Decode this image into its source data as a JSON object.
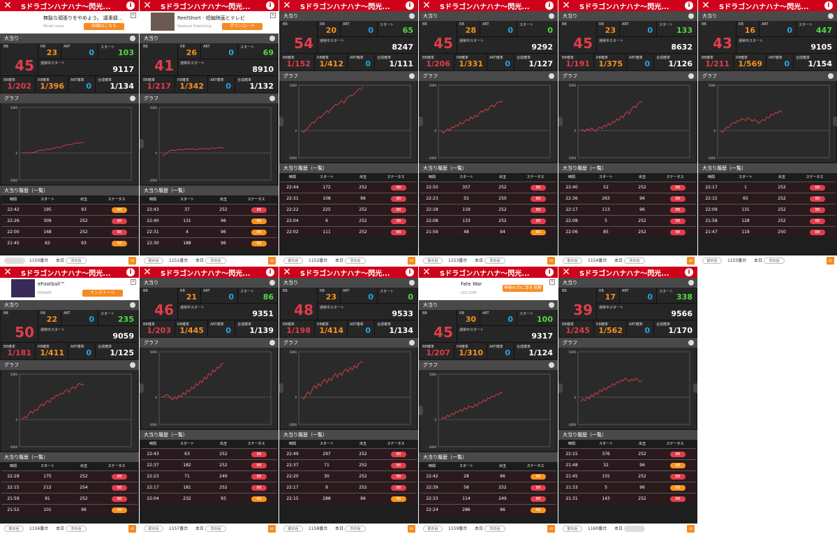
{
  "title": "Sドラゴンハナハナ〜閃光...",
  "labels": {
    "section_bonus": "大当り",
    "section_graph": "グラフ",
    "section_history": "大当り履歴（一覧）",
    "bb": "BB",
    "rb": "RB",
    "art": "ART",
    "start": "スタート",
    "normal_start": "通常中スタート",
    "bb_prob": "BB確率",
    "rb_prob": "RB確率",
    "art_prob": "ART確率",
    "total_prob": "合成確率",
    "col_time": "時間",
    "col_start": "スタート",
    "col_payout": "出玉",
    "col_status": "ステータス",
    "prev": "前の台",
    "next": "次の台",
    "today": "本日",
    "y_top": "5000",
    "y_mid": "0",
    "y_bottom": "-3000",
    "close_glyph": "✕",
    "info_glyph": "i",
    "status_bb": "BB",
    "status_rb": "RB"
  },
  "ads": {
    "p0": {
      "text": "無駄な頑張りをやめよう。 議事録…",
      "sub": "MindCruiser",
      "btn": "詳細はこちら"
    },
    "p1": {
      "text": "ReelShort - 短編映画とテレビ",
      "sub": "NewLeaf Publishing",
      "btn": "ダウンロード"
    },
    "p6": {
      "text": "eFootball™",
      "sub": "KONAMI",
      "btn": "インストール"
    },
    "p9": {
      "text": "Fate War",
      "sub": "IGG.COM",
      "btn": "神秘の力に目を覚醒"
    }
  },
  "panels": [
    {
      "bb": "45",
      "rb": "23",
      "art": "0",
      "start": "103",
      "normal_start": "9117",
      "bb_prob": "1/202",
      "rb_prob": "1/396",
      "art_prob": "0",
      "total_prob": "1/134",
      "machine": "1150番台",
      "graph": [
        0,
        0,
        0,
        -20,
        0,
        40,
        100,
        170,
        260,
        330,
        280,
        360,
        420,
        380,
        460,
        520,
        600,
        640,
        580,
        700,
        820,
        880,
        950,
        900,
        1000,
        1080,
        1120,
        1050,
        1150,
        1100
      ],
      "history": [
        {
          "t": "22:42",
          "s": "195",
          "p": "93",
          "st": "RB"
        },
        {
          "t": "22:26",
          "s": "309",
          "p": "252",
          "st": "BB"
        },
        {
          "t": "22:00",
          "s": "168",
          "p": "252",
          "st": "BB"
        },
        {
          "t": "21:45",
          "s": "62",
          "p": "93",
          "st": "RB"
        }
      ]
    },
    {
      "bb": "41",
      "rb": "26",
      "art": "0",
      "start": "69",
      "normal_start": "8910",
      "bb_prob": "1/217",
      "rb_prob": "1/342",
      "art_prob": "0",
      "total_prob": "1/132",
      "machine": "1151番台",
      "graph": [
        -300,
        -200,
        -100,
        100,
        280,
        320,
        250,
        330,
        400,
        380,
        300,
        420,
        450,
        380,
        480,
        420,
        360,
        400,
        470,
        430,
        510,
        460,
        420,
        500,
        560,
        480,
        520,
        600,
        550,
        580
      ],
      "history": [
        {
          "t": "22:43",
          "s": "37",
          "p": "252",
          "st": "BB"
        },
        {
          "t": "22:40",
          "s": "131",
          "p": "96",
          "st": "RB"
        },
        {
          "t": "22:31",
          "s": "4",
          "p": "96",
          "st": "RB"
        },
        {
          "t": "22:30",
          "s": "188",
          "p": "96",
          "st": "RB"
        }
      ]
    },
    {
      "bb": "54",
      "rb": "20",
      "art": "0",
      "start": "65",
      "normal_start": "8247",
      "bb_prob": "1/152",
      "rb_prob": "1/412",
      "art_prob": "0",
      "total_prob": "1/111",
      "machine": "1152番台",
      "graph": [
        0,
        -200,
        100,
        300,
        600,
        900,
        800,
        1200,
        1500,
        1400,
        1700,
        1900,
        2200,
        2000,
        2400,
        2600,
        2900,
        2800,
        3100,
        3300,
        3000,
        3500,
        3700,
        3900,
        3800,
        4100,
        4300,
        4600,
        4500,
        4800
      ],
      "history": [
        {
          "t": "22:44",
          "s": "172",
          "p": "252",
          "st": "BB"
        },
        {
          "t": "22:31",
          "s": "108",
          "p": "96",
          "st": "BB"
        },
        {
          "t": "22:22",
          "s": "225",
          "p": "252",
          "st": "BB"
        },
        {
          "t": "22:04",
          "s": "6",
          "p": "252",
          "st": "BB"
        },
        {
          "t": "22:02",
          "s": "111",
          "p": "252",
          "st": "BB"
        }
      ]
    },
    {
      "bb": "45",
      "rb": "28",
      "art": "0",
      "start": "0",
      "normal_start": "9292",
      "bb_prob": "1/206",
      "rb_prob": "1/331",
      "art_prob": "0",
      "total_prob": "1/127",
      "machine": "1153番台",
      "graph": [
        0,
        -300,
        -100,
        200,
        0,
        400,
        300,
        600,
        500,
        900,
        700,
        1000,
        1200,
        1100,
        1500,
        1300,
        1700,
        1500,
        1900,
        2200,
        2000,
        2400,
        2200,
        2600,
        2800,
        2600,
        3000,
        3200,
        3100,
        3300
      ],
      "history": [
        {
          "t": "22:50",
          "s": "357",
          "p": "252",
          "st": "BB"
        },
        {
          "t": "22:23",
          "s": "55",
          "p": "250",
          "st": "BB"
        },
        {
          "t": "22:18",
          "s": "119",
          "p": "252",
          "st": "BB"
        },
        {
          "t": "22:08",
          "s": "133",
          "p": "252",
          "st": "BB"
        },
        {
          "t": "21:59",
          "s": "48",
          "p": "94",
          "st": "RB"
        }
      ]
    },
    {
      "bb": "45",
      "rb": "23",
      "art": "0",
      "start": "133",
      "normal_start": "8632",
      "bb_prob": "1/191",
      "rb_prob": "1/375",
      "art_prob": "0",
      "total_prob": "1/126",
      "machine": "1154番台",
      "graph": [
        0,
        100,
        -100,
        200,
        0,
        300,
        100,
        -100,
        200,
        400,
        200,
        600,
        400,
        800,
        600,
        1000,
        900,
        1300,
        1100,
        1600,
        1400,
        1900,
        2100,
        1800,
        2400,
        2700,
        2500,
        3000,
        3200,
        3100
      ],
      "history": [
        {
          "t": "22:40",
          "s": "52",
          "p": "252",
          "st": "BB"
        },
        {
          "t": "22:36",
          "s": "263",
          "p": "96",
          "st": "BB"
        },
        {
          "t": "22:17",
          "s": "113",
          "p": "96",
          "st": "BB"
        },
        {
          "t": "22:08",
          "s": "5",
          "p": "252",
          "st": "BB"
        },
        {
          "t": "22:06",
          "s": "85",
          "p": "252",
          "st": "BB"
        }
      ]
    },
    {
      "bb": "43",
      "rb": "16",
      "art": "0",
      "start": "447",
      "normal_start": "9105",
      "bb_prob": "1/211",
      "rb_prob": "1/569",
      "art_prob": "0",
      "total_prob": "1/154",
      "machine": "1155番台",
      "graph": [
        0,
        -200,
        100,
        400,
        300,
        700,
        900,
        800,
        1100,
        1000,
        1300,
        1200,
        1100,
        1400,
        1300,
        1000,
        1200,
        1100,
        800,
        1000,
        1200,
        1100,
        1500,
        1400,
        1800,
        1700,
        2000,
        1900,
        2200,
        2000
      ],
      "history": [
        {
          "t": "22:17",
          "s": "1",
          "p": "252",
          "st": "BB"
        },
        {
          "t": "22:15",
          "s": "65",
          "p": "252",
          "st": "BB"
        },
        {
          "t": "22:09",
          "s": "131",
          "p": "252",
          "st": "BB"
        },
        {
          "t": "21:58",
          "s": "128",
          "p": "252",
          "st": "BB"
        },
        {
          "t": "21:47",
          "s": "119",
          "p": "250",
          "st": "BB"
        }
      ]
    },
    {
      "bb": "50",
      "rb": "22",
      "art": "0",
      "start": "235",
      "normal_start": "9059",
      "bb_prob": "1/181",
      "rb_prob": "1/411",
      "art_prob": "0",
      "total_prob": "1/125",
      "machine": "1156番台",
      "graph": [
        0,
        300,
        200,
        600,
        900,
        700,
        1100,
        1000,
        1400,
        1700,
        1500,
        1900,
        2100,
        1900,
        2400,
        2300,
        2700,
        2600,
        2900,
        2800,
        3100,
        3300,
        3000,
        3400,
        3600,
        3400,
        3800,
        4000,
        3800,
        3900
      ],
      "history": [
        {
          "t": "22:29",
          "s": "175",
          "p": "252",
          "st": "BB"
        },
        {
          "t": "22:15",
          "s": "212",
          "p": "254",
          "st": "BB"
        },
        {
          "t": "21:59",
          "s": "91",
          "p": "252",
          "st": "BB"
        },
        {
          "t": "21:52",
          "s": "101",
          "p": "96",
          "st": "RB"
        }
      ]
    },
    {
      "bb": "46",
      "rb": "21",
      "art": "0",
      "start": "86",
      "normal_start": "9351",
      "bb_prob": "1/203",
      "rb_prob": "1/445",
      "art_prob": "0",
      "total_prob": "1/139",
      "machine": "1157番台",
      "graph": [
        0,
        100,
        300,
        200,
        -100,
        -300,
        0,
        -200,
        200,
        0,
        500,
        300,
        800,
        600,
        1100,
        900,
        1500,
        1300,
        1800,
        1600,
        2200,
        2000,
        2600,
        2400,
        3000,
        2800,
        3300,
        3200,
        3600,
        3800
      ],
      "history": [
        {
          "t": "22:43",
          "s": "63",
          "p": "252",
          "st": "BB"
        },
        {
          "t": "22:37",
          "s": "182",
          "p": "252",
          "st": "BB"
        },
        {
          "t": "22:23",
          "s": "71",
          "p": "249",
          "st": "BB"
        },
        {
          "t": "22:17",
          "s": "181",
          "p": "252",
          "st": "BB"
        },
        {
          "t": "22:04",
          "s": "232",
          "p": "93",
          "st": "RB"
        }
      ]
    },
    {
      "bb": "48",
      "rb": "23",
      "art": "0",
      "start": "0",
      "normal_start": "9533",
      "bb_prob": "1/198",
      "rb_prob": "1/414",
      "art_prob": "0",
      "total_prob": "1/134",
      "machine": "1158番台",
      "graph": [
        0,
        -200,
        200,
        600,
        300,
        800,
        1300,
        1000,
        1500,
        1200,
        1700,
        2000,
        1600,
        2100,
        1800,
        2300,
        2600,
        2200,
        2700,
        2400,
        2900,
        3100,
        2800,
        3300,
        3000,
        3500,
        3200,
        3700,
        3900,
        3800
      ],
      "history": [
        {
          "t": "22:49",
          "s": "297",
          "p": "252",
          "st": "BB"
        },
        {
          "t": "22:37",
          "s": "71",
          "p": "252",
          "st": "BB"
        },
        {
          "t": "22:20",
          "s": "30",
          "p": "252",
          "st": "BB"
        },
        {
          "t": "22:17",
          "s": "9",
          "p": "252",
          "st": "BB"
        },
        {
          "t": "22:15",
          "s": "288",
          "p": "96",
          "st": "RB"
        }
      ]
    },
    {
      "bb": "45",
      "rb": "30",
      "art": "0",
      "start": "100",
      "normal_start": "9317",
      "bb_prob": "1/207",
      "rb_prob": "1/310",
      "art_prob": "0",
      "total_prob": "1/124",
      "machine": "1159番台",
      "graph": [
        0,
        300,
        100,
        500,
        300,
        700,
        500,
        900,
        800,
        1100,
        900,
        1300,
        1100,
        1500,
        1400,
        1300,
        1700,
        1500,
        1900,
        1800,
        2200,
        2000,
        2400,
        2300,
        2600,
        2500,
        2800,
        2700,
        3000,
        2900
      ],
      "history": [
        {
          "t": "22:42",
          "s": "28",
          "p": "96",
          "st": "RB"
        },
        {
          "t": "22:39",
          "s": "58",
          "p": "252",
          "st": "BB"
        },
        {
          "t": "22:33",
          "s": "114",
          "p": "249",
          "st": "BB"
        },
        {
          "t": "22:24",
          "s": "286",
          "p": "96",
          "st": "RB"
        }
      ]
    },
    {
      "bb": "39",
      "rb": "17",
      "art": "0",
      "start": "338",
      "normal_start": "9566",
      "bb_prob": "1/245",
      "rb_prob": "1/562",
      "art_prob": "0",
      "total_prob": "1/170",
      "machine": "1160番台",
      "graph": [
        -500,
        -200,
        -400,
        0,
        -200,
        300,
        100,
        500,
        300,
        800,
        600,
        1000,
        800,
        1200,
        1100,
        1500,
        1300,
        1700,
        1600,
        1900,
        1800,
        2100,
        1900,
        1700,
        2000,
        1800,
        2100,
        1900,
        1700,
        1800
      ],
      "history": [
        {
          "t": "22:15",
          "s": "376",
          "p": "252",
          "st": "BB"
        },
        {
          "t": "21:48",
          "s": "32",
          "p": "96",
          "st": "RB"
        },
        {
          "t": "21:45",
          "s": "155",
          "p": "252",
          "st": "BB"
        },
        {
          "t": "21:33",
          "s": "5",
          "p": "96",
          "st": "RB"
        },
        {
          "t": "21:31",
          "s": "143",
          "p": "252",
          "st": "BB"
        }
      ]
    }
  ],
  "colors": {
    "header": "#d0021b",
    "bb": "#e23d4a",
    "rb": "#f7931e",
    "art": "#1ea9e8",
    "start": "#4fdc3e",
    "line": "#e23d4a"
  }
}
